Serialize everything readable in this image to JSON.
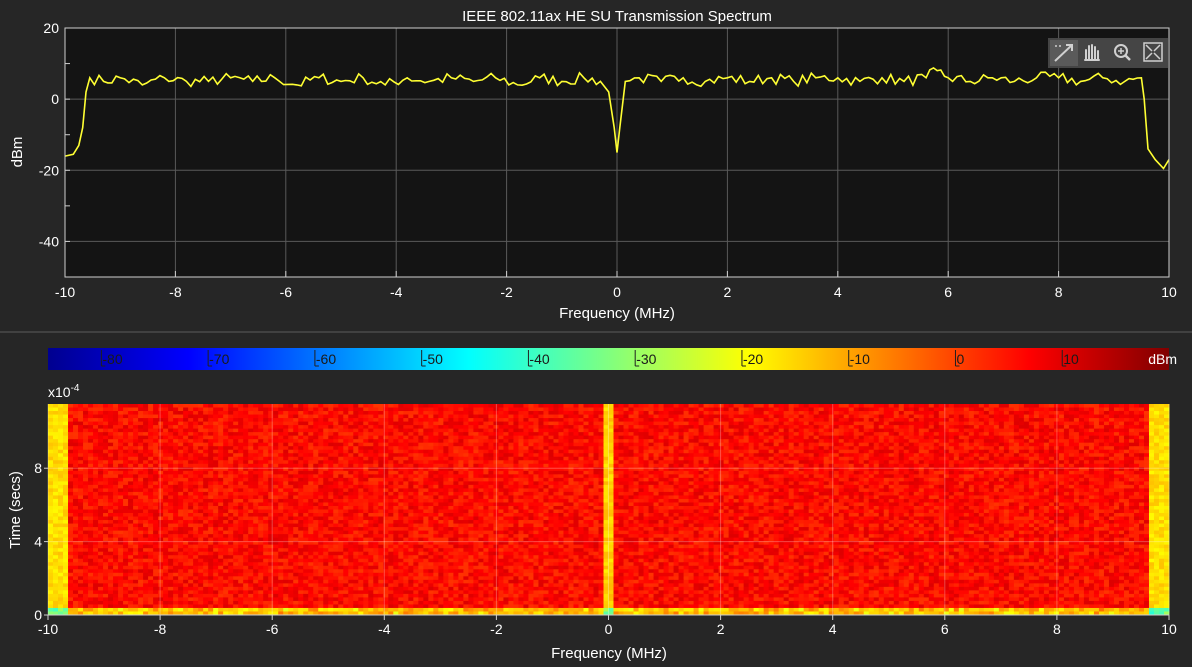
{
  "window": {
    "title": "IEEE 802.11ax HE SU Transmission Spectrum"
  },
  "toolbar": {
    "items": [
      {
        "name": "data-cursor-icon"
      },
      {
        "name": "pan-hand-icon"
      },
      {
        "name": "zoom-in-icon"
      },
      {
        "name": "fit-to-view-icon"
      }
    ]
  },
  "colors": {
    "background": "#262626",
    "axes_bg": "#141414",
    "grid": "#5a5a5a",
    "trace": "#ffff33"
  },
  "chart_data": [
    {
      "type": "line",
      "title": "IEEE 802.11ax HE SU Transmission Spectrum",
      "xlabel": "Frequency (MHz)",
      "ylabel": "dBm",
      "xlim": [
        -10,
        10
      ],
      "ylim": [
        -50,
        20
      ],
      "xticks": [
        "-10",
        "-8",
        "-6",
        "-4",
        "-2",
        "0",
        "2",
        "4",
        "6",
        "8",
        "10"
      ],
      "yticks": [
        "20",
        "0",
        "-20",
        "-40"
      ],
      "grid": true,
      "series": [
        {
          "color": "#ffff33",
          "x": [
            -10,
            -9.85,
            -9.75,
            -9.68,
            -9.62,
            -9.55,
            -9.3,
            -9.0,
            -8.6,
            -8.2,
            -7.8,
            -7.4,
            -7.0,
            -6.6,
            -6.2,
            -5.8,
            -5.4,
            -5.0,
            -4.6,
            -4.2,
            -3.8,
            -3.4,
            -3.0,
            -2.6,
            -2.2,
            -1.8,
            -1.4,
            -1.0,
            -0.6,
            -0.3,
            -0.15,
            -0.05,
            0.0,
            0.05,
            0.15,
            0.4,
            0.8,
            1.2,
            1.6,
            2.0,
            2.4,
            2.8,
            3.2,
            3.6,
            4.0,
            4.4,
            4.8,
            5.2,
            5.6,
            5.8,
            6.0,
            6.4,
            6.8,
            7.2,
            7.6,
            8.0,
            8.4,
            8.8,
            9.2,
            9.5,
            9.55,
            9.62,
            9.75,
            9.9,
            10.0
          ],
          "y": [
            -16,
            -15.5,
            -13,
            -8,
            2,
            6,
            5,
            6,
            4,
            6,
            5,
            5,
            6,
            5,
            6,
            4,
            6,
            5,
            6,
            4,
            6,
            5,
            6,
            5,
            6,
            4,
            6,
            5,
            6,
            5,
            2,
            -8,
            -15,
            -8,
            5,
            6,
            5,
            6,
            5,
            6,
            5,
            6,
            5,
            6,
            6,
            5,
            6,
            5,
            6,
            8,
            6,
            5,
            6,
            5,
            6,
            6,
            5,
            6,
            5,
            6,
            0,
            -14,
            -17,
            -19.5,
            -17
          ]
        }
      ]
    },
    {
      "type": "heatmap",
      "xlabel": "Frequency (MHz)",
      "ylabel": "Time (secs)",
      "y_multiplier": "x10-4",
      "xlim": [
        -10,
        10
      ],
      "ylim": [
        0,
        11.5
      ],
      "xticks": [
        "-10",
        "-8",
        "-6",
        "-4",
        "-2",
        "0",
        "2",
        "4",
        "6",
        "8",
        "10"
      ],
      "yticks": [
        "8",
        "4",
        "0"
      ],
      "grid": true,
      "colorbar": {
        "unit": "dBm",
        "range": [
          -85,
          20
        ],
        "ticks": [
          "-80",
          "-70",
          "-60",
          "-50",
          "-40",
          "-30",
          "-20",
          "-10",
          "0",
          "10"
        ],
        "location": "top"
      },
      "levels": {
        "occupied_band_dbm": 6,
        "band_edges_dbm": -16,
        "dc_notch_dbm": -15
      }
    }
  ]
}
